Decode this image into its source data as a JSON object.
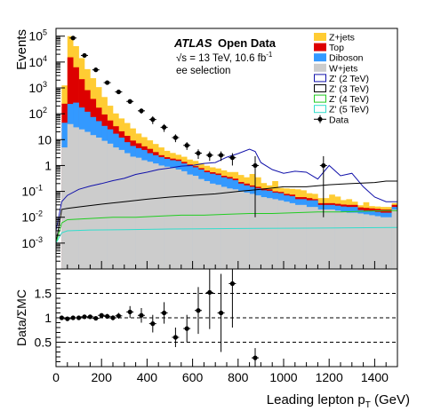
{
  "chart_data": {
    "type": "histogram",
    "main": {
      "ylabel": "Events",
      "log_scale": true,
      "xlim": [
        0,
        1500
      ],
      "ylim_exponent": [
        -4,
        5.3
      ],
      "y_ticks": [
        {
          "value": 100000,
          "base": "10",
          "exp": "5"
        },
        {
          "value": 10000,
          "base": "10",
          "exp": "4"
        },
        {
          "value": 1000,
          "base": "10",
          "exp": "3"
        },
        {
          "value": 100,
          "base": "10",
          "exp": "2"
        },
        {
          "value": 10,
          "base": "10",
          "exp": ""
        },
        {
          "value": 1,
          "base": "1",
          "exp": ""
        },
        {
          "value": 0.1,
          "base": "10",
          "exp": "-1"
        },
        {
          "value": 0.01,
          "base": "10",
          "exp": "-2"
        },
        {
          "value": 0.001,
          "base": "10",
          "exp": "-3"
        }
      ],
      "annotation": {
        "atlas": "ATLAS",
        "open_data": "Open Data",
        "energy": "√s = 13 TeV, 10.6 fb",
        "energy_sup": "-1",
        "selection": "ee selection"
      },
      "bin_edges": [
        25,
        50,
        75,
        100,
        125,
        150,
        175,
        200,
        225,
        250,
        275,
        300,
        325,
        350,
        375,
        400,
        425,
        450,
        475,
        500,
        525,
        550,
        575,
        600,
        625,
        650,
        675,
        700,
        725,
        750,
        775,
        800,
        825,
        850,
        875,
        900,
        925,
        950,
        975,
        1000,
        1025,
        1050,
        1075,
        1100,
        1125,
        1150,
        1175,
        1200,
        1225,
        1250,
        1275,
        1300,
        1325,
        1350,
        1375,
        1400,
        1425,
        1450,
        1475,
        1500
      ],
      "stack": [
        {
          "name": "W+jets",
          "color": "#cccccc",
          "values": [
            5,
            40,
            30,
            25,
            20,
            15,
            12,
            9,
            7,
            5,
            4,
            3,
            2.2,
            2.0,
            1.6,
            1.4,
            1.2,
            1.0,
            0.9,
            0.8,
            0.7,
            0.6,
            0.45,
            0.4,
            0.3,
            0.25,
            0.2,
            0.18,
            0.15,
            0.13,
            0.12,
            0.1,
            0.09,
            0.08,
            0.07,
            0.06,
            0.055,
            0.05,
            0.045,
            0.04,
            0.035,
            0.03,
            0.03,
            0.025,
            0.025,
            0.02,
            0.02,
            0.02,
            0.018,
            0.016,
            0.015,
            0.015,
            0.014,
            0.013,
            0.012,
            0.011,
            0.01,
            0.01,
            0.02
          ]
        },
        {
          "name": "Diboson",
          "color": "#3399ff",
          "values": [
            40,
            200,
            240,
            150,
            100,
            60,
            40,
            25,
            18,
            12,
            8,
            5,
            3.5,
            2.7,
            2.4,
            1.6,
            1.3,
            1.1,
            0.9,
            0.8,
            0.8,
            0.6,
            0.5,
            0.45,
            0.4,
            0.3,
            0.28,
            0.25,
            0.2,
            0.18,
            0.15,
            0.1,
            0.08,
            0.07,
            0.06,
            0.05,
            0.05,
            0.04,
            0.04,
            0.03,
            0.03,
            0.02,
            0.02,
            0.02,
            0.02,
            0.01,
            0.01,
            0.01,
            0.01,
            0.01,
            0.01,
            0.01,
            0.005,
            0.005,
            0.005,
            0.005,
            0.005,
            0.005,
            0.005
          ]
        },
        {
          "name": "Top",
          "color": "#dd0000",
          "values": [
            200,
            15000,
            6000,
            2000,
            700,
            300,
            120,
            60,
            30,
            16,
            9,
            6,
            3.5,
            2.5,
            1.5,
            1.4,
            0.8,
            0.4,
            0.3,
            0.25,
            0.2,
            0.18,
            0.15,
            0.1,
            0.09,
            0.08,
            0.07,
            0.06,
            0.05,
            0.05,
            0.04,
            0.03,
            0.03,
            0.02,
            0.02,
            0.02,
            0.015,
            0.01,
            0.01,
            0.01,
            0.01,
            0.01,
            0.01,
            0.01,
            0.005,
            0.005,
            0.005,
            0.005,
            0.005,
            0.005,
            0.005,
            0.005,
            0.005,
            0.005,
            0.005,
            0.005,
            0.005,
            0.005,
            0.005
          ]
        },
        {
          "name": "Z+jets",
          "color": "#ffcc33",
          "values": [
            1000,
            85000,
            35000,
            12000,
            4500,
            2000,
            900,
            350,
            150,
            70,
            45,
            30,
            18,
            10,
            7,
            5,
            3.5,
            2.5,
            1.6,
            1.2,
            0.9,
            0.8,
            0.6,
            0.55,
            0.45,
            0.35,
            0.3,
            0.28,
            0.25,
            0.2,
            0.25,
            0.2,
            0.15,
            0.3,
            0.2,
            0.08,
            0.05,
            0.15,
            0.04,
            0.05,
            0.05,
            0.06,
            0.05,
            0.03,
            0.03,
            0.02,
            0.02,
            0.04,
            0.03,
            0.015,
            0.02,
            0.01,
            0.005,
            0.015,
            0.005,
            0.005,
            0.005,
            0.005,
            0.005
          ]
        }
      ],
      "signals": [
        {
          "name": "Z' (2 TeV)",
          "color": "#1111aa",
          "x": [
            0,
            25,
            50,
            100,
            150,
            200,
            250,
            300,
            350,
            400,
            450,
            500,
            550,
            600,
            650,
            700,
            750,
            800,
            850,
            875,
            900,
            950,
            1000,
            1050,
            1100,
            1150,
            1200,
            1250,
            1300,
            1350,
            1400,
            1450,
            1500
          ],
          "y": [
            0.003,
            0.04,
            0.07,
            0.12,
            0.16,
            0.2,
            0.26,
            0.32,
            0.45,
            0.55,
            0.7,
            0.8,
            0.95,
            1.0,
            1.2,
            1.3,
            2.1,
            2.9,
            4.3,
            3.5,
            1.3,
            0.7,
            0.5,
            0.6,
            0.55,
            0.3,
            1.0,
            0.4,
            0.5,
            0.15,
            0.06,
            0.04,
            0.04
          ]
        },
        {
          "name": "Z' (3 TeV)",
          "color": "#000000",
          "x": [
            0,
            25,
            50,
            100,
            200,
            300,
            400,
            500,
            600,
            700,
            800,
            900,
            1000,
            1100,
            1200,
            1300,
            1400,
            1450,
            1500
          ],
          "y": [
            0.001,
            0.02,
            0.022,
            0.025,
            0.032,
            0.04,
            0.05,
            0.06,
            0.07,
            0.08,
            0.1,
            0.12,
            0.15,
            0.15,
            0.18,
            0.2,
            0.22,
            0.25,
            0.25
          ]
        },
        {
          "name": "Z' (4 TeV)",
          "color": "#22cc22",
          "x": [
            0,
            25,
            50,
            150,
            250,
            350,
            450,
            550,
            650,
            750,
            850,
            950,
            1050,
            1150,
            1250,
            1350,
            1450,
            1500
          ],
          "y": [
            0.001,
            0.006,
            0.008,
            0.009,
            0.01,
            0.01,
            0.011,
            0.012,
            0.012,
            0.013,
            0.014,
            0.014,
            0.015,
            0.016,
            0.016,
            0.017,
            0.018,
            0.018
          ]
        },
        {
          "name": "Z' (5 TeV)",
          "color": "#33ddcc",
          "x": [
            0,
            25,
            50,
            150,
            300,
            500,
            700,
            900,
            1100,
            1300,
            1500
          ],
          "y": [
            0.001,
            0.0025,
            0.003,
            0.0032,
            0.0033,
            0.0035,
            0.0036,
            0.0037,
            0.0038,
            0.0039,
            0.004
          ]
        }
      ],
      "data_points": [
        {
          "x": 75,
          "y": 85000,
          "lo": 2000,
          "hi": 2000
        },
        {
          "x": 125,
          "y": 18000,
          "lo": 900,
          "hi": 900
        },
        {
          "x": 175,
          "y": 5000,
          "lo": 400,
          "hi": 400
        },
        {
          "x": 225,
          "y": 1600,
          "lo": 200,
          "hi": 200
        },
        {
          "x": 275,
          "y": 700,
          "lo": 100,
          "hi": 100
        },
        {
          "x": 325,
          "y": 300,
          "lo": 60,
          "hi": 60
        },
        {
          "x": 375,
          "y": 130,
          "lo": 30,
          "hi": 30
        },
        {
          "x": 425,
          "y": 60,
          "lo": 20,
          "hi": 20
        },
        {
          "x": 475,
          "y": 30,
          "lo": 10,
          "hi": 10
        },
        {
          "x": 525,
          "y": 12,
          "lo": 4,
          "hi": 4
        },
        {
          "x": 575,
          "y": 6,
          "lo": 2,
          "hi": 2
        },
        {
          "x": 625,
          "y": 3,
          "lo": 1.2,
          "hi": 1.2
        },
        {
          "x": 675,
          "y": 2.5,
          "lo": 1,
          "hi": 1
        },
        {
          "x": 725,
          "y": 2.5,
          "lo": 1,
          "hi": 1
        },
        {
          "x": 775,
          "y": 2,
          "lo": 1,
          "hi": 1
        },
        {
          "x": 875,
          "y": 1,
          "lo": 0.99,
          "hi": 1.3
        },
        {
          "x": 1175,
          "y": 1,
          "lo": 0.99,
          "hi": 1.3
        }
      ],
      "legend": [
        {
          "label": "Z+jets",
          "kind": "fill",
          "color": "#ffcc33"
        },
        {
          "label": "Top",
          "kind": "fill",
          "color": "#dd0000"
        },
        {
          "label": "Diboson",
          "kind": "fill",
          "color": "#3399ff"
        },
        {
          "label": "W+jets",
          "kind": "fill",
          "color": "#cccccc"
        },
        {
          "label": "Z' (2 TeV)",
          "kind": "box",
          "color": "#1111aa"
        },
        {
          "label": "Z' (3 TeV)",
          "kind": "box",
          "color": "#000000"
        },
        {
          "label": "Z' (4 TeV)",
          "kind": "box",
          "color": "#22cc22"
        },
        {
          "label": "Z' (5 TeV)",
          "kind": "box",
          "color": "#33ddcc"
        },
        {
          "label": "Data",
          "kind": "marker",
          "color": "#000000"
        }
      ],
      "legend_position": "top-right"
    },
    "ratio": {
      "ylabel": "Data/ΣMC",
      "ylim": [
        0,
        2
      ],
      "y_ticks": [
        "0.5",
        "1",
        "1.5"
      ],
      "y_tick_values": [
        0.5,
        1,
        1.5
      ],
      "dashed_lines": [
        0.5,
        1,
        1.5
      ],
      "points": [
        {
          "x": 25,
          "y": 1.0,
          "err": 0.03
        },
        {
          "x": 50,
          "y": 0.98,
          "err": 0.02
        },
        {
          "x": 75,
          "y": 1.0,
          "err": 0.01
        },
        {
          "x": 100,
          "y": 1.0,
          "err": 0.01
        },
        {
          "x": 125,
          "y": 1.02,
          "err": 0.02
        },
        {
          "x": 150,
          "y": 1.02,
          "err": 0.02
        },
        {
          "x": 175,
          "y": 0.99,
          "err": 0.02
        },
        {
          "x": 200,
          "y": 1.05,
          "err": 0.04
        },
        {
          "x": 225,
          "y": 1.03,
          "err": 0.05
        },
        {
          "x": 250,
          "y": 1.0,
          "err": 0.05
        },
        {
          "x": 275,
          "y": 1.04,
          "err": 0.06
        },
        {
          "x": 325,
          "y": 1.12,
          "err": 0.12
        },
        {
          "x": 375,
          "y": 1.05,
          "err": 0.15
        },
        {
          "x": 425,
          "y": 0.88,
          "err": 0.18
        },
        {
          "x": 475,
          "y": 1.1,
          "err": 0.22
        },
        {
          "x": 525,
          "y": 0.6,
          "err": 0.2
        },
        {
          "x": 575,
          "y": 0.78,
          "err": 0.28
        },
        {
          "x": 625,
          "y": 1.15,
          "err": 0.48
        },
        {
          "x": 675,
          "y": 1.52,
          "err": 0.75
        },
        {
          "x": 725,
          "y": 1.1,
          "err": 0.8
        },
        {
          "x": 775,
          "y": 1.7,
          "err": 0.9
        },
        {
          "x": 875,
          "y": 0.18,
          "err": 0.2
        }
      ]
    },
    "x_axis": {
      "label": "Leading lepton p",
      "label_sub": "T",
      "label_unit": " (GeV)",
      "ticks": [
        "0",
        "200",
        "400",
        "600",
        "800",
        "1000",
        "1200",
        "1400"
      ],
      "tick_values": [
        0,
        200,
        400,
        600,
        800,
        1000,
        1200,
        1400
      ]
    }
  }
}
